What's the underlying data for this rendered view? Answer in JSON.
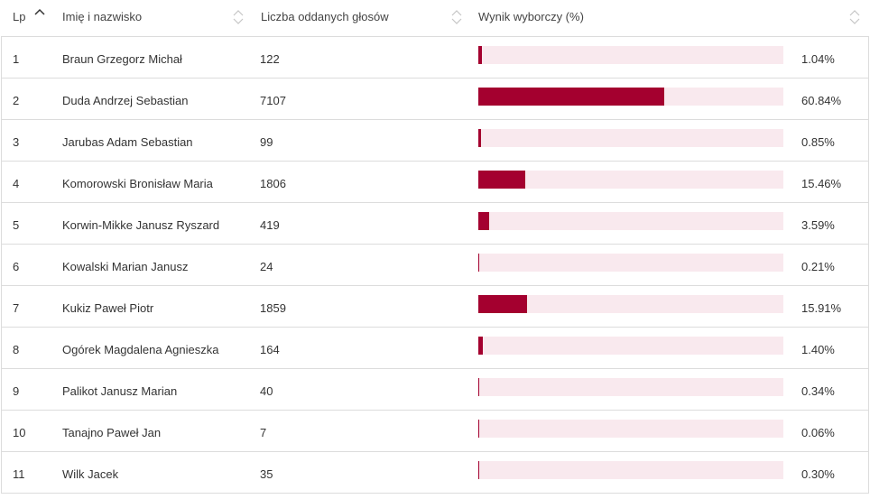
{
  "header": {
    "lp": "Lp",
    "name": "Imię i nazwisko",
    "votes": "Liczba oddanych głosów",
    "result": "Wynik wyborczy (%)"
  },
  "colors": {
    "bar_fill": "#a4002f",
    "bar_track": "#f9e9ee"
  },
  "rows": [
    {
      "lp": "1",
      "name": "Braun Grzegorz Michał",
      "votes": "122",
      "pct": "1.04%",
      "value": 1.04
    },
    {
      "lp": "2",
      "name": "Duda Andrzej Sebastian",
      "votes": "7107",
      "pct": "60.84%",
      "value": 60.84
    },
    {
      "lp": "3",
      "name": "Jarubas Adam Sebastian",
      "votes": "99",
      "pct": "0.85%",
      "value": 0.85
    },
    {
      "lp": "4",
      "name": "Komorowski Bronisław Maria",
      "votes": "1806",
      "pct": "15.46%",
      "value": 15.46
    },
    {
      "lp": "5",
      "name": "Korwin-Mikke Janusz Ryszard",
      "votes": "419",
      "pct": "3.59%",
      "value": 3.59
    },
    {
      "lp": "6",
      "name": "Kowalski Marian Janusz",
      "votes": "24",
      "pct": "0.21%",
      "value": 0.21
    },
    {
      "lp": "7",
      "name": "Kukiz Paweł Piotr",
      "votes": "1859",
      "pct": "15.91%",
      "value": 15.91
    },
    {
      "lp": "8",
      "name": "Ogórek Magdalena Agnieszka",
      "votes": "164",
      "pct": "1.40%",
      "value": 1.4
    },
    {
      "lp": "9",
      "name": "Palikot Janusz Marian",
      "votes": "40",
      "pct": "0.34%",
      "value": 0.34
    },
    {
      "lp": "10",
      "name": "Tanajno Paweł Jan",
      "votes": "7",
      "pct": "0.06%",
      "value": 0.06
    },
    {
      "lp": "11",
      "name": "Wilk Jacek",
      "votes": "35",
      "pct": "0.30%",
      "value": 0.3
    }
  ]
}
